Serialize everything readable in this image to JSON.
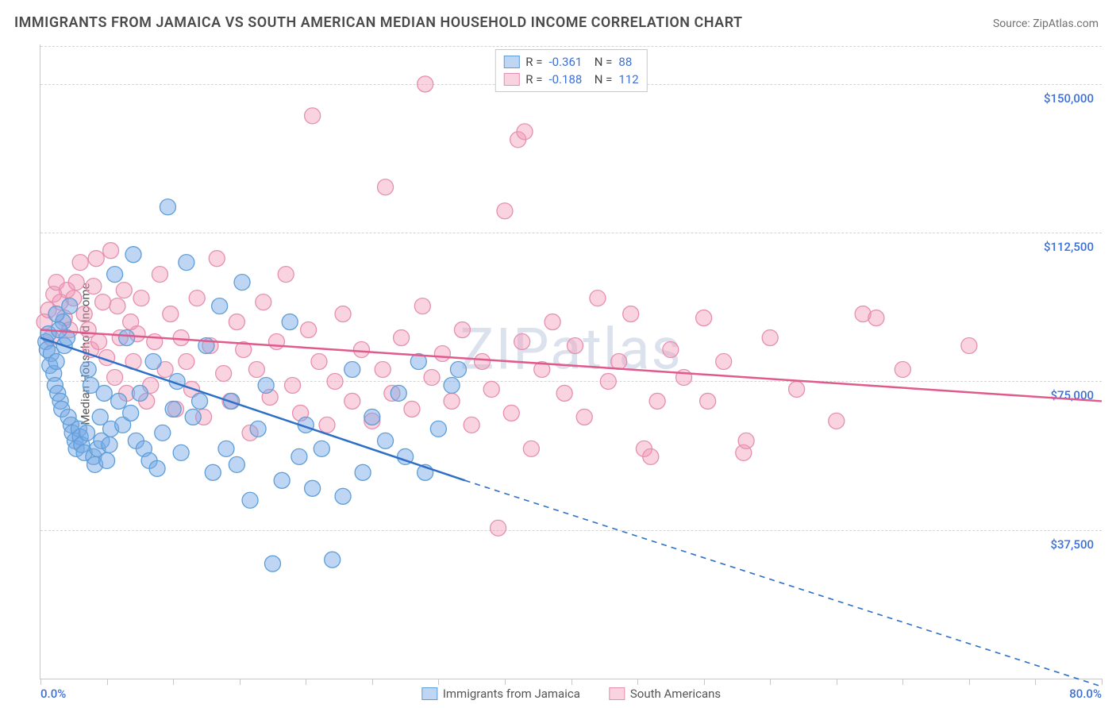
{
  "title": "IMMIGRANTS FROM JAMAICA VS SOUTH AMERICAN MEDIAN HOUSEHOLD INCOME CORRELATION CHART",
  "source": "Source: ZipAtlas.com",
  "watermark": "ZIPatlas",
  "yaxis": {
    "title": "Median Household Income",
    "min": 0,
    "max": 160000,
    "gridlines": [
      37500,
      75000,
      112500,
      150000
    ],
    "tick_labels": [
      "$37,500",
      "$75,000",
      "$112,500",
      "$150,000"
    ],
    "label_color": "#3b6fd9",
    "label_fontsize": 15
  },
  "xaxis": {
    "min": 0,
    "max": 80,
    "ticks": [
      0,
      5,
      10,
      15,
      20,
      25,
      30,
      35,
      40,
      45,
      50,
      55,
      60,
      65,
      70,
      75,
      80
    ],
    "left_label": "0.0%",
    "right_label": "80.0%",
    "label_color": "#3b6fd9"
  },
  "grid_color": "#d4d4d4",
  "axis_color": "#c8c8c8",
  "series": [
    {
      "name": "Immigrants from Jamaica",
      "color_fill": "rgba(120,170,230,0.48)",
      "color_stroke": "#5d9ed9",
      "marker_radius": 10,
      "stats": {
        "R": "-0.361",
        "N": "88"
      },
      "trend": {
        "color": "#2e6fc8",
        "width": 2.5,
        "solid_from_x": 0,
        "solid_from_y": 86000,
        "solid_to_x": 32,
        "solid_to_y": 50000,
        "dash_to_x": 80,
        "dash_to_y": -2000,
        "dash_pattern": "7 6"
      },
      "points": [
        [
          0.4,
          85000
        ],
        [
          0.5,
          83000
        ],
        [
          0.6,
          87000
        ],
        [
          0.8,
          82000
        ],
        [
          0.7,
          79000
        ],
        [
          1.0,
          77000
        ],
        [
          1.2,
          80000
        ],
        [
          1.1,
          74000
        ],
        [
          1.3,
          72000
        ],
        [
          1.5,
          70000
        ],
        [
          1.6,
          68000
        ],
        [
          1.8,
          84000
        ],
        [
          1.7,
          90000
        ],
        [
          2.0,
          86000
        ],
        [
          2.1,
          66000
        ],
        [
          2.3,
          64000
        ],
        [
          2.4,
          62000
        ],
        [
          2.6,
          60000
        ],
        [
          2.7,
          58000
        ],
        [
          2.9,
          63000
        ],
        [
          3.0,
          61000
        ],
        [
          3.1,
          59000
        ],
        [
          3.3,
          57000
        ],
        [
          3.5,
          62000
        ],
        [
          3.6,
          78000
        ],
        [
          3.8,
          74000
        ],
        [
          4.0,
          56000
        ],
        [
          4.1,
          54000
        ],
        [
          4.3,
          58000
        ],
        [
          4.5,
          66000
        ],
        [
          4.6,
          60000
        ],
        [
          4.8,
          72000
        ],
        [
          5.0,
          55000
        ],
        [
          5.2,
          59000
        ],
        [
          5.3,
          63000
        ],
        [
          5.6,
          102000
        ],
        [
          5.9,
          70000
        ],
        [
          6.2,
          64000
        ],
        [
          6.5,
          86000
        ],
        [
          6.8,
          67000
        ],
        [
          7.0,
          107000
        ],
        [
          7.2,
          60000
        ],
        [
          7.5,
          72000
        ],
        [
          7.8,
          58000
        ],
        [
          8.2,
          55000
        ],
        [
          8.5,
          80000
        ],
        [
          8.8,
          53000
        ],
        [
          9.2,
          62000
        ],
        [
          9.6,
          119000
        ],
        [
          10.0,
          68000
        ],
        [
          10.3,
          75000
        ],
        [
          10.6,
          57000
        ],
        [
          11.0,
          105000
        ],
        [
          11.5,
          66000
        ],
        [
          12.0,
          70000
        ],
        [
          12.5,
          84000
        ],
        [
          13.0,
          52000
        ],
        [
          13.5,
          94000
        ],
        [
          14.0,
          58000
        ],
        [
          14.4,
          70000
        ],
        [
          14.8,
          54000
        ],
        [
          15.2,
          100000
        ],
        [
          15.8,
          45000
        ],
        [
          16.4,
          63000
        ],
        [
          17.0,
          74000
        ],
        [
          17.5,
          29000
        ],
        [
          18.2,
          50000
        ],
        [
          18.8,
          90000
        ],
        [
          19.5,
          56000
        ],
        [
          20.0,
          64000
        ],
        [
          20.5,
          48000
        ],
        [
          21.2,
          58000
        ],
        [
          22.0,
          30000
        ],
        [
          22.8,
          46000
        ],
        [
          23.5,
          78000
        ],
        [
          24.3,
          52000
        ],
        [
          25.0,
          66000
        ],
        [
          26.0,
          60000
        ],
        [
          27.0,
          72000
        ],
        [
          27.5,
          56000
        ],
        [
          28.5,
          80000
        ],
        [
          29.0,
          52000
        ],
        [
          30.0,
          63000
        ],
        [
          31.0,
          74000
        ],
        [
          31.5,
          78000
        ],
        [
          1.2,
          92000
        ],
        [
          1.4,
          88000
        ],
        [
          2.2,
          94000
        ]
      ]
    },
    {
      "name": "South Americans",
      "color_fill": "rgba(240,150,180,0.42)",
      "color_stroke": "#e68fb0",
      "marker_radius": 10,
      "stats": {
        "R": "-0.188",
        "N": "112"
      },
      "trend": {
        "color": "#e05a8c",
        "width": 2.5,
        "solid_from_x": 0,
        "solid_from_y": 88000,
        "solid_to_x": 80,
        "solid_to_y": 70000,
        "dash_to_x": null,
        "dash_to_y": null,
        "dash_pattern": null
      },
      "points": [
        [
          0.3,
          90000
        ],
        [
          0.6,
          93000
        ],
        [
          0.8,
          86000
        ],
        [
          1.0,
          97000
        ],
        [
          1.2,
          100000
        ],
        [
          1.5,
          95000
        ],
        [
          1.8,
          91000
        ],
        [
          2.0,
          98000
        ],
        [
          2.2,
          88000
        ],
        [
          2.5,
          96000
        ],
        [
          2.7,
          100000
        ],
        [
          3.0,
          105000
        ],
        [
          3.3,
          92000
        ],
        [
          3.6,
          88000
        ],
        [
          3.8,
          83000
        ],
        [
          4.0,
          99000
        ],
        [
          4.2,
          106000
        ],
        [
          4.4,
          85000
        ],
        [
          4.7,
          95000
        ],
        [
          5.0,
          81000
        ],
        [
          5.3,
          108000
        ],
        [
          5.6,
          76000
        ],
        [
          5.8,
          94000
        ],
        [
          6.0,
          86000
        ],
        [
          6.3,
          98000
        ],
        [
          6.5,
          72000
        ],
        [
          6.8,
          90000
        ],
        [
          7.0,
          80000
        ],
        [
          7.3,
          87000
        ],
        [
          7.6,
          96000
        ],
        [
          8.0,
          70000
        ],
        [
          8.3,
          74000
        ],
        [
          8.6,
          85000
        ],
        [
          9.0,
          102000
        ],
        [
          9.4,
          78000
        ],
        [
          9.8,
          92000
        ],
        [
          10.2,
          68000
        ],
        [
          10.6,
          86000
        ],
        [
          11.0,
          80000
        ],
        [
          11.4,
          73000
        ],
        [
          11.8,
          96000
        ],
        [
          12.3,
          66000
        ],
        [
          12.8,
          84000
        ],
        [
          13.3,
          106000
        ],
        [
          13.8,
          77000
        ],
        [
          14.3,
          70000
        ],
        [
          14.8,
          90000
        ],
        [
          15.3,
          83000
        ],
        [
          15.8,
          62000
        ],
        [
          16.3,
          78000
        ],
        [
          16.8,
          95000
        ],
        [
          17.3,
          71000
        ],
        [
          17.8,
          85000
        ],
        [
          18.5,
          102000
        ],
        [
          19.0,
          74000
        ],
        [
          19.6,
          67000
        ],
        [
          20.2,
          88000
        ],
        [
          20.5,
          142000
        ],
        [
          21.0,
          80000
        ],
        [
          21.6,
          64000
        ],
        [
          22.2,
          75000
        ],
        [
          22.8,
          92000
        ],
        [
          23.5,
          70000
        ],
        [
          24.2,
          83000
        ],
        [
          25.0,
          65000
        ],
        [
          25.8,
          78000
        ],
        [
          26.0,
          124000
        ],
        [
          26.5,
          72000
        ],
        [
          27.2,
          86000
        ],
        [
          28.0,
          68000
        ],
        [
          28.8,
          94000
        ],
        [
          29.0,
          150000
        ],
        [
          29.5,
          76000
        ],
        [
          30.3,
          82000
        ],
        [
          31.0,
          70000
        ],
        [
          31.8,
          88000
        ],
        [
          32.5,
          64000
        ],
        [
          33.3,
          80000
        ],
        [
          34.0,
          73000
        ],
        [
          34.5,
          38000
        ],
        [
          35.0,
          118000
        ],
        [
          35.5,
          67000
        ],
        [
          36.0,
          136000
        ],
        [
          36.3,
          85000
        ],
        [
          36.5,
          138000
        ],
        [
          37.0,
          58000
        ],
        [
          37.8,
          78000
        ],
        [
          38.6,
          90000
        ],
        [
          39.5,
          72000
        ],
        [
          40.3,
          84000
        ],
        [
          41.0,
          66000
        ],
        [
          42.0,
          96000
        ],
        [
          42.8,
          75000
        ],
        [
          43.6,
          80000
        ],
        [
          44.5,
          92000
        ],
        [
          45.5,
          58000
        ],
        [
          46.0,
          56000
        ],
        [
          46.5,
          70000
        ],
        [
          47.5,
          83000
        ],
        [
          48.5,
          76000
        ],
        [
          50.0,
          91000
        ],
        [
          50.3,
          70000
        ],
        [
          51.5,
          80000
        ],
        [
          53.0,
          57000
        ],
        [
          53.2,
          60000
        ],
        [
          55.0,
          86000
        ],
        [
          57.0,
          73000
        ],
        [
          60.0,
          65000
        ],
        [
          62.0,
          92000
        ],
        [
          63.0,
          91000
        ],
        [
          65.0,
          78000
        ],
        [
          70.0,
          84000
        ]
      ]
    }
  ],
  "legend_top": {
    "border_color": "#c8c8c8",
    "text_color": "#444444",
    "value_color": "#3b6fd9"
  },
  "legend_bottom": {
    "text_color": "#555555"
  }
}
